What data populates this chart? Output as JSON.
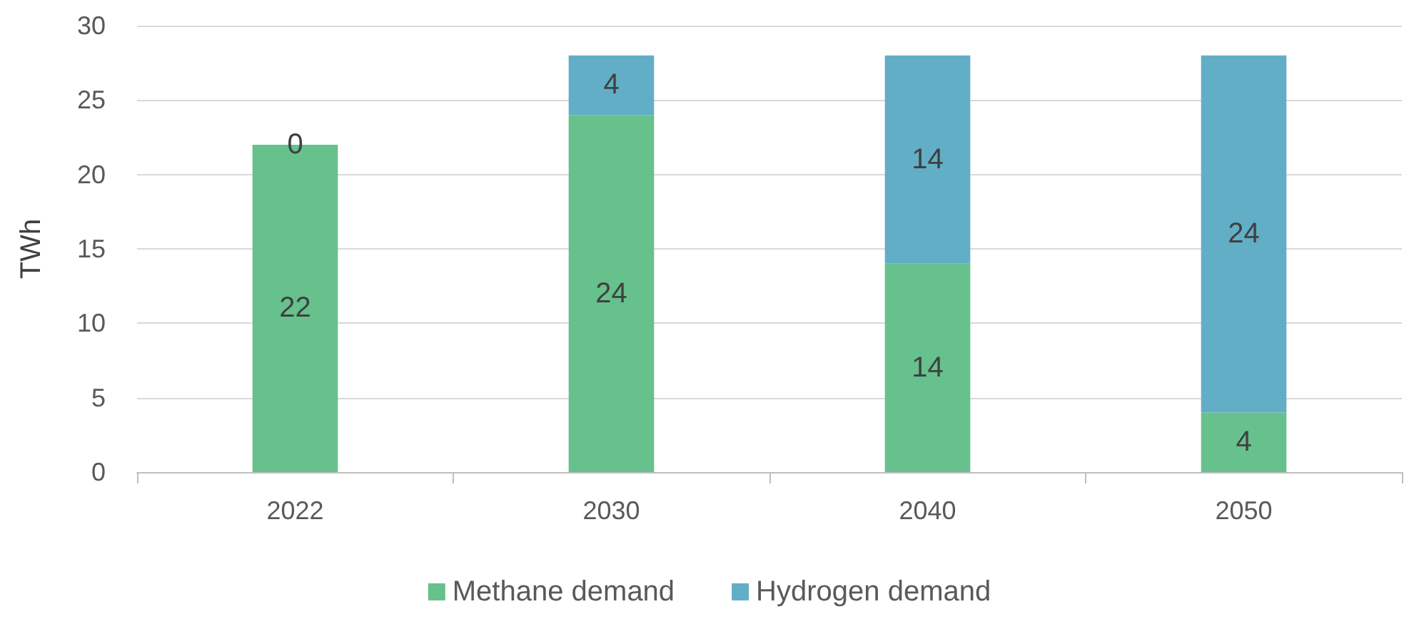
{
  "chart_data": {
    "type": "bar",
    "ylabel": "TWh",
    "categories": [
      "2022",
      "2030",
      "2040",
      "2050"
    ],
    "stacked": true,
    "series": [
      {
        "name": "Methane demand",
        "color": "#66c18c",
        "values": [
          22,
          24,
          14,
          4
        ]
      },
      {
        "name": "Hydrogen demand",
        "color": "#62aec6",
        "values": [
          0,
          4,
          14,
          24
        ]
      }
    ],
    "ylim": [
      0,
      30
    ],
    "yticks": [
      0,
      5,
      10,
      15,
      20,
      25,
      30
    ],
    "grid": "y",
    "legend": "bottom",
    "data_labels": true
  }
}
